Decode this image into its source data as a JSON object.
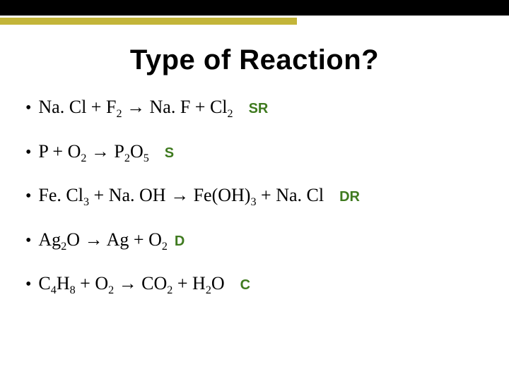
{
  "colors": {
    "topbar": "#000000",
    "accent": "#c3b539",
    "answer": "#3f7a1f",
    "title_text": "#000000",
    "body_text": "#000000",
    "background": "#ffffff"
  },
  "title": "Type of Reaction?",
  "rows": [
    {
      "type": "single-replacement",
      "answer": "SR"
    },
    {
      "type": "synthesis",
      "answer": "S"
    },
    {
      "type": "double-replacement",
      "answer": "DR"
    },
    {
      "type": "decomposition",
      "answer": "D"
    },
    {
      "type": "combustion",
      "answer": "C"
    }
  ],
  "equations": {
    "eq1": {
      "reactant1": "Na. Cl",
      "plus1": " + ",
      "reactant2_base": "F",
      "reactant2_sub": "2",
      "arrow": " → ",
      "product1": "Na. F",
      "plus2": " + ",
      "product2_base": "Cl",
      "product2_sub": "2"
    },
    "eq2": {
      "reactant1": "P",
      "plus1": " + ",
      "reactant2_base": "O",
      "reactant2_sub": "2",
      "arrow": " → ",
      "product_base1": "P",
      "product_sub1": "2",
      "product_base2": "O",
      "product_sub2": "5"
    },
    "eq3": {
      "reactant1_base": "Fe. Cl",
      "reactant1_sub": "3",
      "plus1": " + ",
      "reactant2": "Na. OH",
      "arrow": " →  ",
      "product1_a": "Fe(OH)",
      "product1_sub": "3",
      "plus2": " + ",
      "product2": "Na. Cl"
    },
    "eq4": {
      "reactant_base1": "Ag",
      "reactant_sub1": "2",
      "reactant_base2": "O",
      "arrow": " → ",
      "product1": "Ag",
      "plus1": " + ",
      "product2_base": "O",
      "product2_sub": "2"
    },
    "eq5": {
      "r1_a": "C",
      "r1_sub_a": "4",
      "r1_b": "H",
      "r1_sub_b": "8",
      "plus1": " + ",
      "r2_base": "O",
      "r2_sub": "2",
      "arrow": " → ",
      "p1_base": "CO",
      "p1_sub": "2",
      "plus2": " + ",
      "p2_a": "H",
      "p2_sub": "2",
      "p2_b": "O"
    }
  }
}
